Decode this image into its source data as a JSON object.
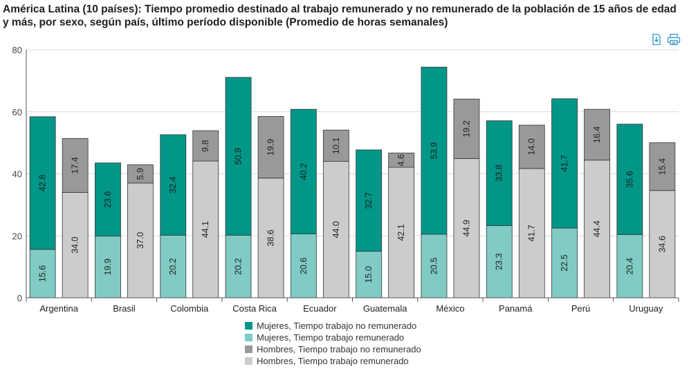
{
  "title": "América Latina (10 países): Tiempo promedio destinado al trabajo remunerado y no remunerado de la población de 15 años de edad y más, por sexo, según país, último período disponible (Promedio de horas semanales)",
  "toolbar": {
    "download_icon": "download-icon",
    "print_icon": "print-icon"
  },
  "colors": {
    "accent": "#3399cc",
    "m_nr": "#009688",
    "m_r": "#80cbc4",
    "h_nr": "#999999",
    "h_r": "#cccccc"
  },
  "chart_data": {
    "type": "bar",
    "stacked": true,
    "categories": [
      "Argentina",
      "Brasil",
      "Colombia",
      "Costa Rica",
      "Ecuador",
      "Guatemala",
      "México",
      "Panamá",
      "Perú",
      "Uruguay"
    ],
    "ylim": [
      0,
      80
    ],
    "yticks": [
      0,
      20,
      40,
      60,
      80
    ],
    "grid": true,
    "legend_position": "bottom",
    "groups": [
      {
        "name": "Mujeres",
        "segments": [
          {
            "name": "Mujeres, Tiempo trabajo remunerado",
            "color": "#80cbc4",
            "values": [
              15.6,
              19.9,
              20.2,
              20.2,
              20.6,
              15.0,
              20.5,
              23.3,
              22.5,
              20.4
            ]
          },
          {
            "name": "Mujeres, Tiempo trabajo no remunerado",
            "color": "#009688",
            "values": [
              42.8,
              23.6,
              32.4,
              50.9,
              40.2,
              32.7,
              53.9,
              33.8,
              41.7,
              35.6
            ]
          }
        ]
      },
      {
        "name": "Hombres",
        "segments": [
          {
            "name": "Hombres, Tiempo trabajo remunerado",
            "color": "#cccccc",
            "values": [
              34.0,
              37.0,
              44.1,
              38.6,
              44.0,
              42.1,
              44.9,
              41.7,
              44.4,
              34.6
            ]
          },
          {
            "name": "Hombres, Tiempo trabajo no remunerado",
            "color": "#999999",
            "values": [
              17.4,
              5.9,
              9.8,
              19.9,
              10.1,
              4.6,
              19.2,
              14.0,
              16.4,
              15.4
            ]
          }
        ]
      }
    ],
    "legend": [
      {
        "label": "Mujeres, Tiempo trabajo no remunerado",
        "color": "#009688"
      },
      {
        "label": "Mujeres, Tiempo trabajo remunerado",
        "color": "#80cbc4"
      },
      {
        "label": "Hombres, Tiempo trabajo no remunerado",
        "color": "#999999"
      },
      {
        "label": "Hombres, Tiempo trabajo remunerado",
        "color": "#cccccc"
      }
    ]
  }
}
